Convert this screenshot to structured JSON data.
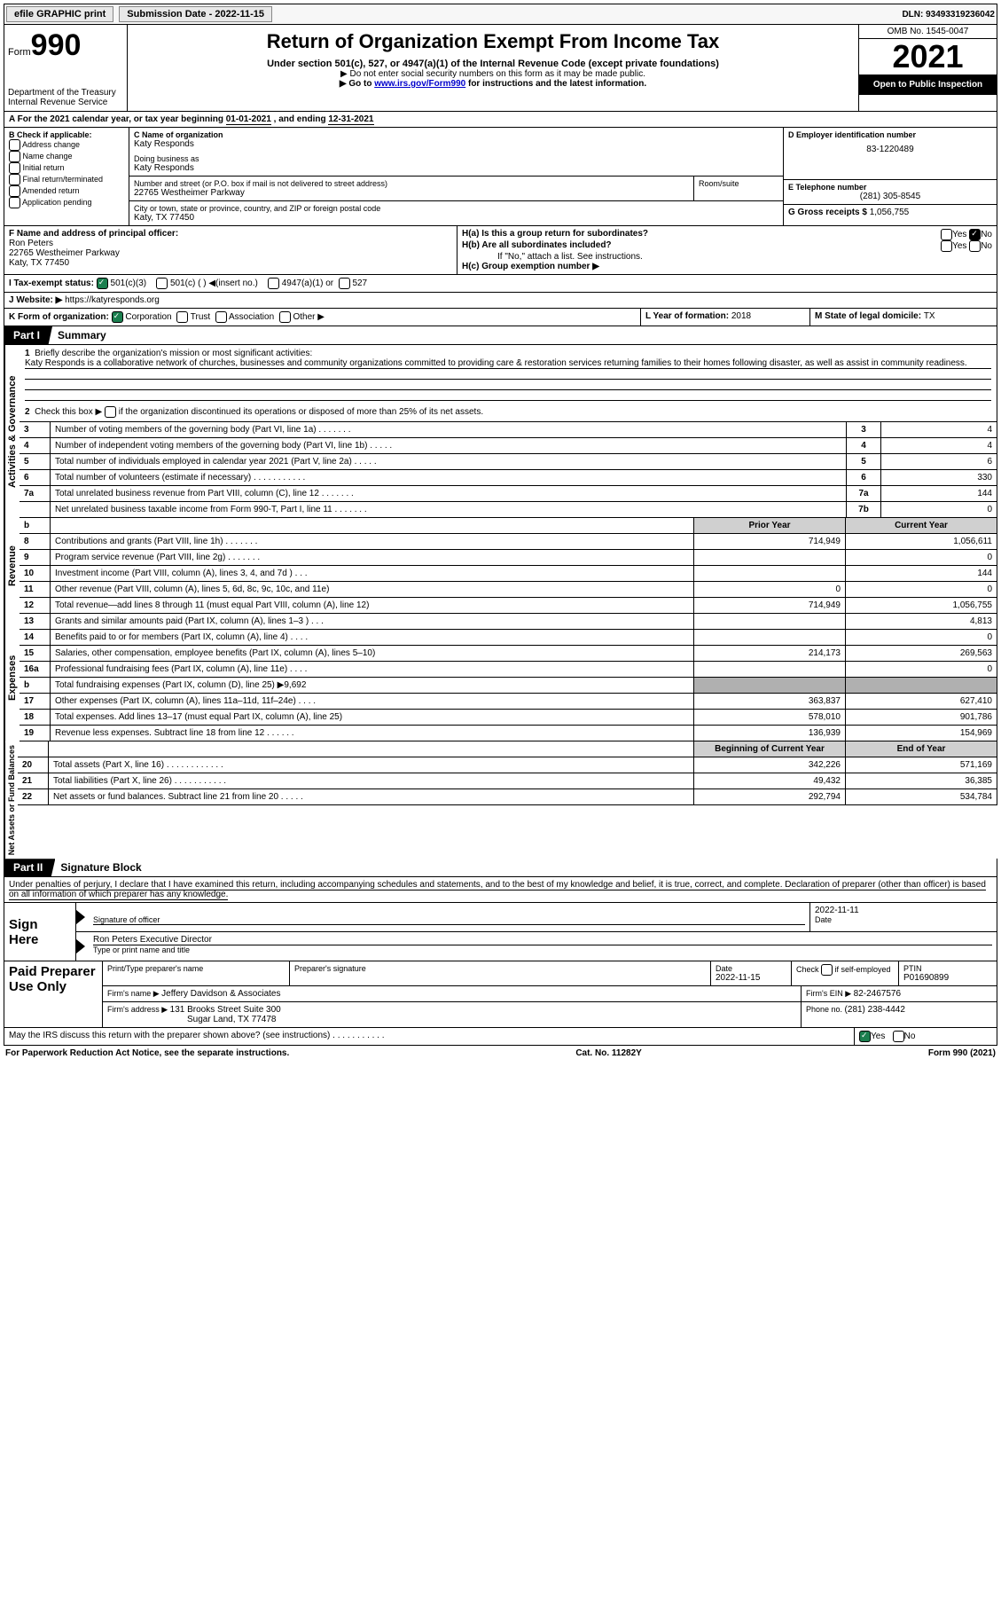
{
  "topbar": {
    "efile": "efile GRAPHIC print",
    "subdate_label": "Submission Date - ",
    "subdate": "2022-11-15",
    "dln_label": "DLN: ",
    "dln": "93493319236042"
  },
  "header": {
    "form_word": "Form",
    "form_no": "990",
    "dept": "Department of the Treasury Internal Revenue Service",
    "title": "Return of Organization Exempt From Income Tax",
    "sub1": "Under section 501(c), 527, or 4947(a)(1) of the Internal Revenue Code (except private foundations)",
    "sub2": "▶ Do not enter social security numbers on this form as it may be made public.",
    "sub3_pre": "▶ Go to ",
    "sub3_link": "www.irs.gov/Form990",
    "sub3_post": " for instructions and the latest information.",
    "omb": "OMB No. 1545-0047",
    "year": "2021",
    "pub": "Open to Public Inspection"
  },
  "lineA": {
    "text_pre": "A For the 2021 calendar year, or tax year beginning ",
    "begin": "01-01-2021",
    "mid": "   , and ending ",
    "end": "12-31-2021"
  },
  "colB": {
    "head": "B Check if applicable:",
    "opts": [
      "Address change",
      "Name change",
      "Initial return",
      "Final return/terminated",
      "Amended return",
      "Application pending"
    ]
  },
  "colC": {
    "name_lbl": "C Name of organization",
    "name": "Katy Responds",
    "dba_lbl": "Doing business as",
    "dba": "Katy Responds",
    "street_lbl": "Number and street (or P.O. box if mail is not delivered to street address)",
    "street": "22765 Westheimer Parkway",
    "suite_lbl": "Room/suite",
    "city_lbl": "City or town, state or province, country, and ZIP or foreign postal code",
    "city": "Katy, TX  77450"
  },
  "colD": {
    "lbl": "D Employer identification number",
    "val": "83-1220489"
  },
  "colE": {
    "lbl": "E Telephone number",
    "val": "(281) 305-8545"
  },
  "colG": {
    "lbl": "G Gross receipts $ ",
    "val": "1,056,755"
  },
  "colF": {
    "lbl": "F Name and address of principal officer:",
    "name": "Ron Peters",
    "addr1": "22765 Westheimer Parkway",
    "addr2": "Katy, TX  77450"
  },
  "colH": {
    "a": "H(a)  Is this a group return for subordinates?",
    "b": "H(b)  Are all subordinates included?",
    "b_note": "If \"No,\" attach a list. See instructions.",
    "c": "H(c)  Group exemption number ▶",
    "yes": "Yes",
    "no": "No"
  },
  "lineI": {
    "lbl": "I    Tax-exempt status:",
    "o1": "501(c)(3)",
    "o2": "501(c) (  ) ◀(insert no.)",
    "o3": "4947(a)(1) or",
    "o4": "527"
  },
  "lineJ": {
    "lbl": "J   Website: ▶   ",
    "val": "https://katyresponds.org"
  },
  "lineK": {
    "lbl": "K Form of organization:",
    "o1": "Corporation",
    "o2": "Trust",
    "o3": "Association",
    "o4": "Other ▶"
  },
  "lineL": {
    "lbl": "L Year of formation: ",
    "val": "2018"
  },
  "lineM": {
    "lbl": "M State of legal domicile: ",
    "val": "TX"
  },
  "part1": {
    "tab": "Part I",
    "title": "Summary"
  },
  "sec1": {
    "vlabel": "Activities & Governance",
    "l1_lbl": "Briefly describe the organization's mission or most significant activities:",
    "l1_txt": "Katy Responds is a collaborative network of churches, businesses and community organizations committed to providing care & restoration services returning families to their homes following disaster, as well as assist in community readiness.",
    "l2": "Check this box ▶       if the organization discontinued its operations or disposed of more than 25% of its net assets.",
    "rows": [
      {
        "n": "3",
        "t": "Number of voting members of the governing body (Part VI, line 1a)   .    .    .    .    .    .    .",
        "box": "3",
        "v": "4"
      },
      {
        "n": "4",
        "t": "Number of independent voting members of the governing body (Part VI, line 1b)   .    .    .    .    .",
        "box": "4",
        "v": "4"
      },
      {
        "n": "5",
        "t": "Total number of individuals employed in calendar year 2021 (Part V, line 2a)    .    .    .    .    .",
        "box": "5",
        "v": "6"
      },
      {
        "n": "6",
        "t": "Total number of volunteers (estimate if necessary)    .    .    .    .    .    .    .    .    .    .    .",
        "box": "6",
        "v": "330"
      },
      {
        "n": "7a",
        "t": "Total unrelated business revenue from Part VIII, column (C), line 12    .    .    .    .    .    .    .",
        "box": "7a",
        "v": "144"
      },
      {
        "n": "",
        "t": "Net unrelated business taxable income from Form 990-T, Part I, line 11   .    .    .    .    .    .    .",
        "box": "7b",
        "v": "0"
      }
    ]
  },
  "sec2": {
    "vlabel": "Revenue",
    "head_prior": "Prior Year",
    "head_curr": "Current Year",
    "b_label": "b",
    "rows": [
      {
        "n": "8",
        "t": "Contributions and grants (Part VIII, line 1h)   .    .    .    .    .    .    .",
        "p": "714,949",
        "c": "1,056,611"
      },
      {
        "n": "9",
        "t": "Program service revenue (Part VIII, line 2g)   .    .    .    .    .    .    .",
        "p": "",
        "c": "0"
      },
      {
        "n": "10",
        "t": "Investment income (Part VIII, column (A), lines 3, 4, and 7d )   .    .    .",
        "p": "",
        "c": "144"
      },
      {
        "n": "11",
        "t": "Other revenue (Part VIII, column (A), lines 5, 6d, 8c, 9c, 10c, and 11e)",
        "p": "0",
        "c": "0"
      },
      {
        "n": "12",
        "t": "Total revenue—add lines 8 through 11 (must equal Part VIII, column (A), line 12)",
        "p": "714,949",
        "c": "1,056,755"
      }
    ]
  },
  "sec3": {
    "vlabel": "Expenses",
    "rows": [
      {
        "n": "13",
        "t": "Grants and similar amounts paid (Part IX, column (A), lines 1–3 )   .    .    .",
        "p": "",
        "c": "4,813"
      },
      {
        "n": "14",
        "t": "Benefits paid to or for members (Part IX, column (A), line 4)   .    .    .    .",
        "p": "",
        "c": "0"
      },
      {
        "n": "15",
        "t": "Salaries, other compensation, employee benefits (Part IX, column (A), lines 5–10)",
        "p": "214,173",
        "c": "269,563"
      },
      {
        "n": "16a",
        "t": "Professional fundraising fees (Part IX, column (A), line 11e)   .    .    .    .",
        "p": "",
        "c": "0"
      },
      {
        "n": "b",
        "t": "Total fundraising expenses (Part IX, column (D), line 25) ▶9,692",
        "shade": true
      },
      {
        "n": "17",
        "t": "Other expenses (Part IX, column (A), lines 11a–11d, 11f–24e)   .    .    .    .",
        "p": "363,837",
        "c": "627,410"
      },
      {
        "n": "18",
        "t": "Total expenses. Add lines 13–17 (must equal Part IX, column (A), line 25)",
        "p": "578,010",
        "c": "901,786"
      },
      {
        "n": "19",
        "t": "Revenue less expenses. Subtract line 18 from line 12   .    .    .    .    .    .",
        "p": "136,939",
        "c": "154,969"
      }
    ]
  },
  "sec4": {
    "vlabel": "Net Assets or Fund Balances",
    "head_begin": "Beginning of Current Year",
    "head_end": "End of Year",
    "rows": [
      {
        "n": "20",
        "t": "Total assets (Part X, line 16)   .    .    .    .    .    .    .    .    .    .    .    .",
        "p": "342,226",
        "c": "571,169"
      },
      {
        "n": "21",
        "t": "Total liabilities (Part X, line 26)   .    .    .    .    .    .    .    .    .    .    .",
        "p": "49,432",
        "c": "36,385"
      },
      {
        "n": "22",
        "t": "Net assets or fund balances. Subtract line 21 from line 20   .    .    .    .    .",
        "p": "292,794",
        "c": "534,784"
      }
    ]
  },
  "part2": {
    "tab": "Part II",
    "title": "Signature Block",
    "decl": "Under penalties of perjury, I declare that I have examined this return, including accompanying schedules and statements, and to the best of my knowledge and belief, it is true, correct, and complete. Declaration of preparer (other than officer) is based on all information of which preparer has any knowledge."
  },
  "sign": {
    "here": "Sign Here",
    "sig_lbl": "Signature of officer",
    "date": "2022-11-11",
    "date_lbl": "Date",
    "name": "Ron Peters  Executive Director",
    "name_lbl": "Type or print name and title"
  },
  "prep": {
    "here": "Paid Preparer Use Only",
    "pname_lbl": "Print/Type preparer's name",
    "psig_lbl": "Preparer's signature",
    "pdate_lbl": "Date",
    "pdate": "2022-11-15",
    "pcheck_lbl": "Check         if self-employed",
    "ptin_lbl": "PTIN",
    "ptin": "P01690899",
    "firm_lbl": "Firm's name      ▶ ",
    "firm": "Jeffery Davidson & Associates",
    "ein_lbl": "Firm's EIN ▶ ",
    "ein": "82-2467576",
    "addr_lbl": "Firm's address ▶ ",
    "addr1": "131 Brooks Street Suite 300",
    "addr2": "Sugar Land, TX  77478",
    "phone_lbl": "Phone no. ",
    "phone": "(281) 238-4442"
  },
  "discuss": {
    "txt": "May the IRS discuss this return with the preparer shown above? (see instructions)   .    .    .    .    .    .    .    .    .    .    .",
    "yes": "Yes",
    "no": "No"
  },
  "footer": {
    "left": "For Paperwork Reduction Act Notice, see the separate instructions.",
    "mid": "Cat. No. 11282Y",
    "right": "Form 990 (2021)"
  }
}
